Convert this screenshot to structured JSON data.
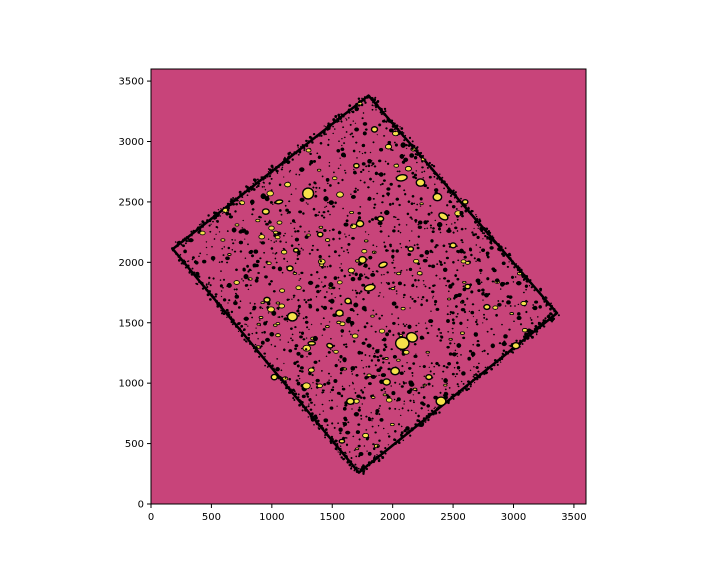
{
  "chart_data": {
    "type": "heatmap",
    "title": "",
    "xlabel": "",
    "ylabel": "",
    "xlim": [
      0,
      3600
    ],
    "ylim": [
      0,
      3600
    ],
    "x_ticks": [
      0,
      500,
      1000,
      1500,
      2000,
      2500,
      3000,
      3500
    ],
    "y_ticks": [
      0,
      500,
      1000,
      1500,
      2000,
      2500,
      3000,
      3500
    ],
    "x_tick_labels": [
      "0",
      "500",
      "1000",
      "1500",
      "2000",
      "2500",
      "3000",
      "3500"
    ],
    "y_tick_labels": [
      "0",
      "500",
      "1000",
      "1500",
      "2000",
      "2500",
      "3000",
      "3500"
    ],
    "grid": false,
    "colors": {
      "background": "#c8447a",
      "source_fill": "#f5e14a",
      "contour": "#000000"
    },
    "survey_footprint": {
      "corners": [
        [
          1800,
          3380
        ],
        [
          3360,
          1580
        ],
        [
          1720,
          260
        ],
        [
          180,
          2110
        ]
      ]
    },
    "sources": [
      {
        "x": 1300,
        "y": 2570,
        "a": 45,
        "b": 45,
        "angle": 0
      },
      {
        "x": 2075,
        "y": 2700,
        "a": 45,
        "b": 25,
        "angle": -10
      },
      {
        "x": 2230,
        "y": 2660,
        "a": 35,
        "b": 30,
        "angle": 0
      },
      {
        "x": 2370,
        "y": 2540,
        "a": 35,
        "b": 30,
        "angle": 0
      },
      {
        "x": 2420,
        "y": 2380,
        "a": 40,
        "b": 25,
        "angle": 30
      },
      {
        "x": 1730,
        "y": 2320,
        "a": 30,
        "b": 25,
        "angle": 0
      },
      {
        "x": 1900,
        "y": 2360,
        "a": 25,
        "b": 20,
        "angle": 0
      },
      {
        "x": 1750,
        "y": 2020,
        "a": 30,
        "b": 28,
        "angle": 0
      },
      {
        "x": 1920,
        "y": 1980,
        "a": 35,
        "b": 20,
        "angle": -20
      },
      {
        "x": 1810,
        "y": 1790,
        "a": 45,
        "b": 25,
        "angle": -15
      },
      {
        "x": 1630,
        "y": 1680,
        "a": 25,
        "b": 22,
        "angle": 0
      },
      {
        "x": 1560,
        "y": 1580,
        "a": 30,
        "b": 25,
        "angle": 0
      },
      {
        "x": 1170,
        "y": 1550,
        "a": 40,
        "b": 35,
        "angle": 0
      },
      {
        "x": 1150,
        "y": 1950,
        "a": 25,
        "b": 20,
        "angle": 0
      },
      {
        "x": 960,
        "y": 1690,
        "a": 25,
        "b": 20,
        "angle": 0
      },
      {
        "x": 2080,
        "y": 1330,
        "a": 55,
        "b": 50,
        "angle": 0
      },
      {
        "x": 2160,
        "y": 1380,
        "a": 45,
        "b": 38,
        "angle": 20
      },
      {
        "x": 2020,
        "y": 1100,
        "a": 35,
        "b": 30,
        "angle": 0
      },
      {
        "x": 1950,
        "y": 1010,
        "a": 30,
        "b": 25,
        "angle": 0
      },
      {
        "x": 2400,
        "y": 850,
        "a": 40,
        "b": 35,
        "angle": 0
      },
      {
        "x": 1650,
        "y": 850,
        "a": 30,
        "b": 25,
        "angle": 0
      },
      {
        "x": 1020,
        "y": 1050,
        "a": 25,
        "b": 22,
        "angle": 0
      },
      {
        "x": 3020,
        "y": 1310,
        "a": 30,
        "b": 25,
        "angle": 0
      },
      {
        "x": 2780,
        "y": 1630,
        "a": 25,
        "b": 20,
        "angle": 0
      },
      {
        "x": 2500,
        "y": 2140,
        "a": 25,
        "b": 20,
        "angle": 0
      },
      {
        "x": 1850,
        "y": 3100,
        "a": 25,
        "b": 22,
        "angle": 0
      },
      {
        "x": 1060,
        "y": 2500,
        "a": 30,
        "b": 15,
        "angle": -10
      },
      {
        "x": 950,
        "y": 2420,
        "a": 28,
        "b": 22,
        "angle": 0
      },
      {
        "x": 2150,
        "y": 2110,
        "a": 22,
        "b": 18,
        "angle": 0
      },
      {
        "x": 1480,
        "y": 1310,
        "a": 25,
        "b": 18,
        "angle": 20
      },
      {
        "x": 1330,
        "y": 1330,
        "a": 30,
        "b": 15,
        "angle": 0
      },
      {
        "x": 2300,
        "y": 1050,
        "a": 25,
        "b": 20,
        "angle": 0
      },
      {
        "x": 1400,
        "y": 2230,
        "a": 22,
        "b": 18,
        "angle": 0
      },
      {
        "x": 2620,
        "y": 1800,
        "a": 22,
        "b": 18,
        "angle": 0
      },
      {
        "x": 1700,
        "y": 2800,
        "a": 22,
        "b": 18,
        "angle": 0
      },
      {
        "x": 2600,
        "y": 2500,
        "a": 22,
        "b": 18,
        "angle": 0
      },
      {
        "x": 1200,
        "y": 2100,
        "a": 20,
        "b": 16,
        "angle": 0
      },
      {
        "x": 1580,
        "y": 520,
        "a": 22,
        "b": 15,
        "angle": 0
      }
    ]
  }
}
